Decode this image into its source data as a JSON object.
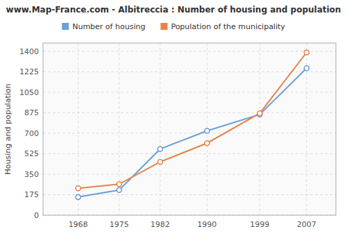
{
  "chart_data": {
    "type": "line",
    "title": "www.Map-France.com - Albitreccia : Number of housing and population",
    "ylabel": "Housing and population",
    "x": [
      1968,
      1975,
      1982,
      1990,
      1999,
      2007
    ],
    "series": [
      {
        "name": "Number of housing",
        "color": "#6a9fd8",
        "values": [
          155,
          215,
          565,
          720,
          860,
          1255
        ]
      },
      {
        "name": "Population of the municipality",
        "color": "#e8824a",
        "values": [
          230,
          265,
          455,
          615,
          870,
          1390
        ]
      }
    ],
    "xlim": [
      1962,
      2012
    ],
    "xticks": [
      1968,
      1975,
      1982,
      1990,
      1999,
      2007
    ],
    "ylim": [
      0,
      1470
    ],
    "yticks": [
      0,
      175,
      350,
      525,
      700,
      875,
      1050,
      1225,
      1400
    ],
    "grid": true,
    "legend": "top",
    "marker": "circle",
    "line_style": "solid"
  }
}
